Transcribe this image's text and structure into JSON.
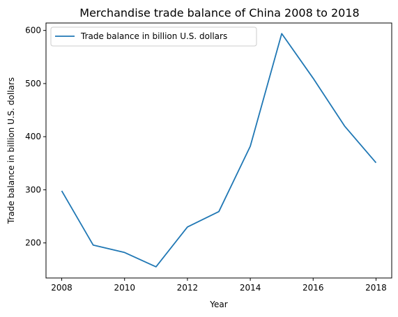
{
  "chart_data": {
    "type": "line",
    "title": "Merchandise trade balance of China 2008 to 2018",
    "xlabel": "Year",
    "ylabel": "Trade balance in billion U.S. dollars",
    "x": [
      2008,
      2009,
      2010,
      2011,
      2012,
      2013,
      2014,
      2015,
      2016,
      2017,
      2018
    ],
    "series": [
      {
        "name": "Trade balance in billion U.S. dollars",
        "color": "#1f77b4",
        "values": [
          298,
          196,
          182,
          155,
          230,
          259,
          382,
          594,
          510,
          420,
          351
        ]
      }
    ],
    "xlim": [
      2007.5,
      2018.5
    ],
    "ylim": [
      134,
      614
    ],
    "xticks": [
      2008,
      2010,
      2012,
      2014,
      2016,
      2018
    ],
    "yticks": [
      200,
      300,
      400,
      500,
      600
    ],
    "grid": false,
    "legend_position": "top-left"
  }
}
